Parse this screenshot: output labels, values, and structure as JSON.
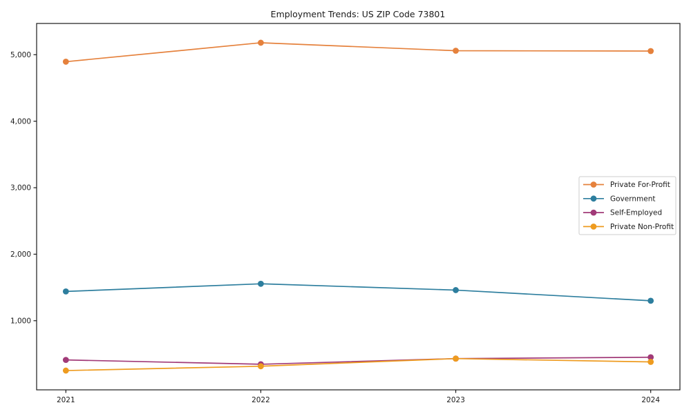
{
  "chart_data": {
    "type": "line",
    "title": "Employment Trends: US ZIP Code 73801",
    "xlabel": "",
    "ylabel": "",
    "x": [
      2021,
      2022,
      2023,
      2024
    ],
    "x_tick_labels": [
      "2021",
      "2022",
      "2023",
      "2024"
    ],
    "series": [
      {
        "name": "Private For-Profit",
        "color": "#e5813c",
        "values": [
          4895,
          5180,
          5060,
          5055
        ]
      },
      {
        "name": "Government",
        "color": "#2d7e9e",
        "values": [
          1440,
          1555,
          1460,
          1300
        ]
      },
      {
        "name": "Self-Employed",
        "color": "#a13a78",
        "values": [
          410,
          345,
          430,
          450
        ]
      },
      {
        "name": "Private Non-Profit",
        "color": "#ee9b1f",
        "values": [
          250,
          315,
          430,
          380
        ]
      }
    ],
    "yticks": {
      "values": [
        1000,
        2000,
        3000,
        4000,
        5000
      ],
      "labels": [
        "1,000",
        "2,000",
        "3,000",
        "4,000",
        "5,000"
      ]
    },
    "xlim": [
      2020.85,
      2024.15
    ],
    "ylim": [
      -40,
      5470
    ],
    "grid": false,
    "legend_position": "center right",
    "axis_color": "#1a1a1a",
    "legend_border_color": "#cccccc",
    "background_color": "#ffffff"
  }
}
